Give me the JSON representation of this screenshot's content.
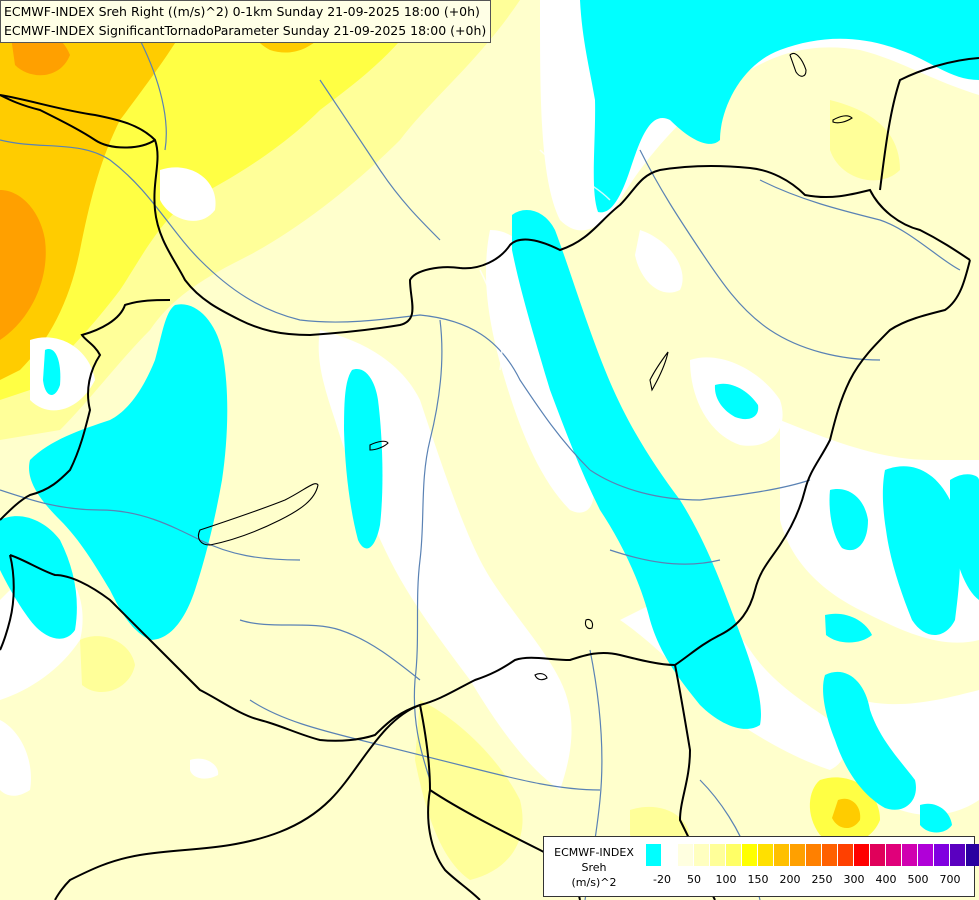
{
  "title": {
    "line1": "ECMWF-INDEX Sreh Right ((m/s)^2) 0-1km Sunday 21-09-2025 18:00 (+0h)",
    "line2": "ECMWF-INDEX SignificantTornadoParameter Sunday 21-09-2025 18:00 (+0h)"
  },
  "legend": {
    "model": "ECMWF-INDEX",
    "parameter": "Sreh",
    "unit": "(m/s)^2",
    "colors": [
      "#00ffff",
      "#ffffff",
      "#ffffe0",
      "#ffffc0",
      "#ffff99",
      "#ffff66",
      "#ffff00",
      "#ffe000",
      "#ffc000",
      "#ffa000",
      "#ff8000",
      "#ff6000",
      "#ff4000",
      "#ff0000",
      "#e0005a",
      "#e0007a",
      "#d000b0",
      "#b000d8",
      "#8000e0",
      "#5a00c0",
      "#2a00a0",
      "#000080"
    ],
    "ticks": [
      "-20",
      "50",
      "100",
      "150",
      "200",
      "250",
      "300",
      "400",
      "500",
      "700"
    ]
  },
  "field_colors": {
    "cyan": "#00ffff",
    "white": "#ffffff",
    "pale_yellow": "#ffffcc",
    "light_yellow": "#ffff99",
    "yellow": "#ffff44",
    "gold": "#ffcc00",
    "orange": "#ffa000",
    "border": "#000000",
    "river": "#5a82b4"
  }
}
